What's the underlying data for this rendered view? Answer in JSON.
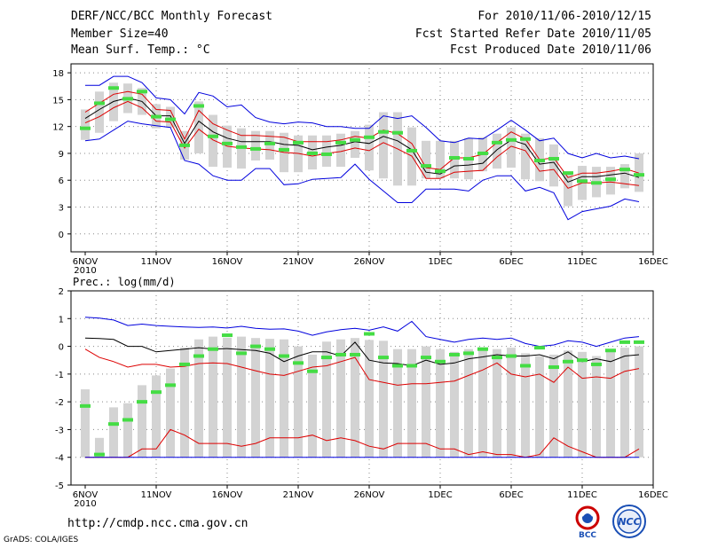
{
  "header": {
    "title": "DERF/NCC/BCC Monthly Forecast",
    "member_size": "Member Size=40",
    "variable": "Mean Surf. Temp.: °C",
    "period": "For 2010/11/06-2010/12/15",
    "start_date": "Fcst Started Refer Date 2010/11/05",
    "produced_date": "Fcst Produced Date 2010/11/06"
  },
  "x_ticks": [
    "6NOV",
    "11NOV",
    "16NOV",
    "21NOV",
    "26NOV",
    "1DEC",
    "6DEC",
    "11DEC",
    "16DEC"
  ],
  "x_year": "2010",
  "footer": {
    "url": "http://cmdp.ncc.cma.gov.cn",
    "grads": "GrADS: COLA/IGES"
  },
  "logos": {
    "bcc": "BCC",
    "ncc": "NCC"
  },
  "colors": {
    "max": "#0000dd",
    "min": "#0000dd",
    "mean": "#000000",
    "p25": "#dd0000",
    "p75": "#dd0000",
    "obs": "#44dd44",
    "box": "#d3d3d3"
  },
  "chart_data": [
    {
      "type": "line",
      "title": "Mean Surf. Temp.: °C",
      "ylim": [
        -2,
        19
      ],
      "yticks": [
        0,
        3,
        6,
        9,
        12,
        15,
        18
      ],
      "x": [
        1,
        2,
        3,
        4,
        5,
        6,
        7,
        8,
        9,
        10,
        11,
        12,
        13,
        14,
        15,
        16,
        17,
        18,
        19,
        20,
        21,
        22,
        23,
        24,
        25,
        26,
        27,
        28,
        29,
        30,
        31,
        32,
        33,
        34,
        35,
        36,
        37,
        38,
        39,
        40
      ],
      "series": [
        {
          "name": "max",
          "values": [
            16.6,
            16.6,
            17.6,
            17.6,
            16.9,
            15.2,
            15.0,
            13.4,
            15.8,
            15.4,
            14.2,
            14.4,
            13.0,
            12.5,
            12.3,
            12.5,
            12.4,
            12.0,
            12.0,
            11.8,
            11.8,
            13.2,
            12.9,
            13.2,
            11.9,
            10.4,
            10.2,
            10.7,
            10.6,
            11.6,
            12.7,
            11.6,
            10.4,
            10.7,
            9.0,
            8.5,
            9.0,
            8.5,
            8.7,
            8.4
          ]
        },
        {
          "name": "p75",
          "values": [
            13.6,
            14.6,
            15.6,
            15.9,
            15.6,
            13.9,
            13.8,
            10.6,
            13.8,
            12.3,
            11.6,
            11.0,
            11.0,
            10.9,
            10.8,
            10.3,
            10.3,
            10.3,
            10.5,
            10.9,
            10.7,
            11.6,
            11.2,
            10.1,
            7.4,
            7.2,
            8.5,
            8.5,
            8.9,
            10.2,
            11.4,
            10.6,
            8.3,
            8.5,
            6.3,
            6.8,
            6.8,
            7.0,
            7.3,
            6.8
          ]
        },
        {
          "name": "mean",
          "values": [
            12.9,
            13.9,
            14.8,
            15.2,
            14.8,
            13.2,
            13.2,
            10.1,
            12.6,
            11.4,
            10.7,
            10.3,
            10.3,
            10.3,
            10.0,
            9.9,
            9.4,
            9.7,
            9.9,
            10.3,
            10.1,
            10.9,
            10.4,
            9.4,
            6.9,
            6.7,
            7.6,
            7.7,
            7.9,
            9.4,
            10.5,
            10.0,
            7.8,
            8.0,
            5.8,
            6.4,
            6.4,
            6.6,
            6.8,
            6.3
          ]
        },
        {
          "name": "p25",
          "values": [
            12.4,
            13.1,
            14.1,
            14.8,
            14.1,
            12.6,
            12.5,
            9.6,
            11.7,
            10.5,
            9.8,
            9.6,
            9.5,
            9.4,
            9.1,
            9.0,
            8.7,
            9.0,
            9.2,
            9.6,
            9.3,
            10.2,
            9.5,
            8.7,
            6.2,
            6.2,
            6.9,
            7.0,
            7.1,
            8.6,
            9.8,
            9.3,
            7.0,
            7.2,
            5.1,
            5.7,
            5.7,
            5.8,
            5.6,
            5.4
          ]
        },
        {
          "name": "min",
          "values": [
            10.4,
            10.6,
            11.6,
            12.6,
            12.3,
            12.1,
            11.9,
            8.2,
            7.8,
            6.5,
            6.0,
            6.0,
            7.3,
            7.3,
            5.5,
            5.6,
            6.1,
            6.2,
            6.3,
            7.8,
            6.1,
            4.8,
            3.5,
            3.5,
            5.0,
            5.0,
            5.0,
            4.8,
            6.0,
            6.5,
            6.5,
            4.8,
            5.2,
            4.6,
            1.6,
            2.5,
            2.8,
            3.1,
            3.9,
            3.6
          ]
        },
        {
          "name": "observed",
          "values": [
            11.8,
            14.6,
            16.3,
            15.1,
            15.9,
            13.1,
            12.8,
            9.9,
            14.3,
            10.9,
            10.1,
            9.7,
            9.5,
            10.1,
            9.4,
            10.2,
            9.0,
            8.9,
            10.2,
            10.5,
            10.8,
            11.4,
            11.3,
            9.3,
            7.6,
            7.0,
            8.5,
            8.4,
            9.0,
            10.2,
            10.5,
            10.6,
            8.2,
            8.4,
            6.8,
            5.9,
            5.7,
            6.1,
            7.2,
            6.6
          ]
        },
        {
          "name": "box_hi",
          "values": [
            13.9,
            15.9,
            16.9,
            16.8,
            16.3,
            14.5,
            14.2,
            11.5,
            14.8,
            13.3,
            12.1,
            11.8,
            11.5,
            11.5,
            11.3,
            11.0,
            11.0,
            11.0,
            11.2,
            11.5,
            12.2,
            13.6,
            13.6,
            11.9,
            10.4,
            10.4,
            10.4,
            10.7,
            10.8,
            11.2,
            11.9,
            11.2,
            10.7,
            10.0,
            7.0,
            7.6,
            7.5,
            7.5,
            7.8,
            9.0
          ]
        },
        {
          "name": "box_lo",
          "values": [
            10.5,
            11.3,
            12.6,
            13.5,
            13.3,
            11.8,
            11.9,
            8.3,
            9.0,
            7.5,
            7.4,
            7.3,
            8.2,
            8.3,
            6.9,
            6.9,
            7.2,
            7.5,
            7.5,
            8.5,
            7.1,
            6.2,
            5.4,
            5.4,
            6.2,
            6.2,
            6.2,
            6.1,
            7.0,
            7.3,
            7.4,
            6.1,
            5.9,
            5.3,
            3.1,
            3.8,
            4.1,
            4.4,
            5.1,
            4.7
          ]
        }
      ]
    },
    {
      "type": "line",
      "title": "Prec.: log(mm/d)",
      "ylim": [
        -5,
        2
      ],
      "yticks": [
        -5,
        -4,
        -3,
        -2,
        -1,
        0,
        1,
        2
      ],
      "x": [
        1,
        2,
        3,
        4,
        5,
        6,
        7,
        8,
        9,
        10,
        11,
        12,
        13,
        14,
        15,
        16,
        17,
        18,
        19,
        20,
        21,
        22,
        23,
        24,
        25,
        26,
        27,
        28,
        29,
        30,
        31,
        32,
        33,
        34,
        35,
        36,
        37,
        38,
        39,
        40
      ],
      "series": [
        {
          "name": "max",
          "values": [
            1.05,
            1.02,
            0.95,
            0.75,
            0.8,
            0.75,
            0.72,
            0.7,
            0.68,
            0.7,
            0.66,
            0.72,
            0.65,
            0.62,
            0.63,
            0.55,
            0.4,
            0.52,
            0.6,
            0.65,
            0.58,
            0.7,
            0.55,
            0.9,
            0.35,
            0.25,
            0.15,
            0.25,
            0.3,
            0.25,
            0.3,
            0.1,
            0.0,
            0.05,
            0.2,
            0.15,
            0.0,
            0.15,
            0.3,
            0.35
          ]
        },
        {
          "name": "mean",
          "values": [
            0.3,
            0.28,
            0.25,
            0.0,
            0.0,
            -0.2,
            -0.15,
            -0.1,
            -0.05,
            -0.1,
            -0.08,
            -0.12,
            -0.15,
            -0.25,
            -0.55,
            -0.35,
            -0.2,
            -0.2,
            -0.35,
            0.15,
            -0.5,
            -0.6,
            -0.62,
            -0.7,
            -0.5,
            -0.65,
            -0.6,
            -0.45,
            -0.38,
            -0.3,
            -0.35,
            -0.35,
            -0.3,
            -0.45,
            -0.2,
            -0.55,
            -0.45,
            -0.55,
            -0.35,
            -0.3
          ]
        },
        {
          "name": "p25",
          "values": [
            -0.1,
            -0.4,
            -0.55,
            -0.75,
            -0.65,
            -0.65,
            -0.75,
            -0.72,
            -0.62,
            -0.6,
            -0.62,
            -0.75,
            -0.88,
            -1.0,
            -1.05,
            -0.9,
            -0.75,
            -0.7,
            -0.55,
            -0.4,
            -1.2,
            -1.3,
            -1.4,
            -1.35,
            -1.35,
            -1.3,
            -1.25,
            -1.05,
            -0.85,
            -0.6,
            -1.0,
            -1.1,
            -1.0,
            -1.3,
            -0.75,
            -1.15,
            -1.1,
            -1.15,
            -0.9,
            -0.8
          ]
        },
        {
          "name": "p25b",
          "values": [
            -4.0,
            -4.0,
            -4.0,
            -4.0,
            -3.7,
            -3.7,
            -3.0,
            -3.2,
            -3.5,
            -3.5,
            -3.5,
            -3.6,
            -3.5,
            -3.3,
            -3.3,
            -3.3,
            -3.2,
            -3.4,
            -3.3,
            -3.4,
            -3.6,
            -3.7,
            -3.5,
            -3.5,
            -3.5,
            -3.7,
            -3.7,
            -3.9,
            -3.8,
            -3.9,
            -3.9,
            -4.0,
            -3.9,
            -3.3,
            -3.6,
            -3.8,
            -4.0,
            -4.0,
            -4.0,
            -3.7
          ]
        },
        {
          "name": "observed",
          "values": [
            -2.15,
            -3.9,
            -2.8,
            -2.65,
            -2.0,
            -1.65,
            -1.4,
            -0.65,
            -0.35,
            -0.1,
            0.4,
            -0.25,
            0.0,
            -0.1,
            -0.35,
            -0.6,
            -0.9,
            -0.4,
            -0.3,
            -0.3,
            0.45,
            -0.4,
            -0.7,
            -0.7,
            -0.4,
            -0.55,
            -0.3,
            -0.25,
            -0.1,
            -0.4,
            -0.35,
            -0.7,
            -0.05,
            -0.75,
            -0.55,
            -0.5,
            -0.65,
            -0.15,
            0.15,
            0.15
          ]
        }
      ]
    }
  ]
}
